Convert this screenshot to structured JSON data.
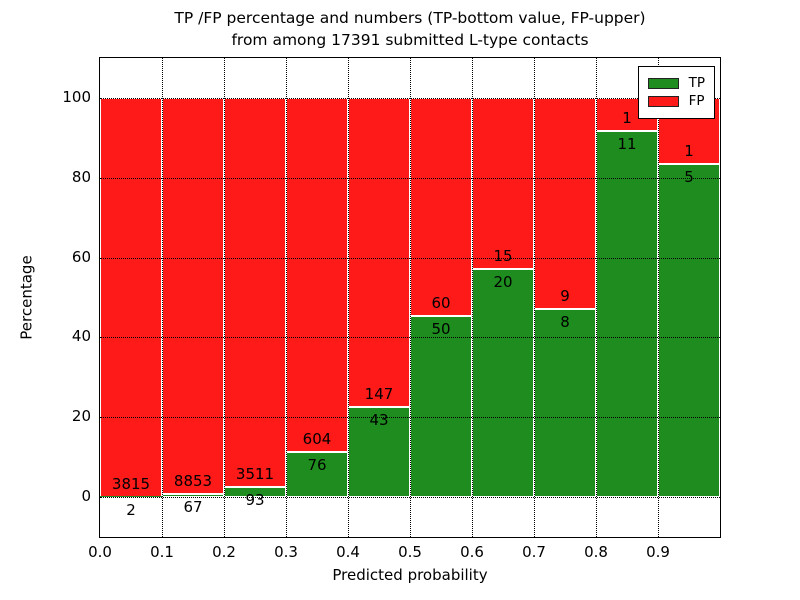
{
  "title": {
    "line1": "TP /FP percentage and numbers (TP-bottom value, FP-upper)",
    "line2": "from among 17391 submitted L-type contacts"
  },
  "axes": {
    "xlabel": "Predicted probability",
    "ylabel": "Percentage",
    "xtick_labels": [
      "0.0",
      "0.1",
      "0.2",
      "0.3",
      "0.4",
      "0.5",
      "0.6",
      "0.7",
      "0.8",
      "0.9"
    ],
    "ytick_values": [
      0,
      20,
      40,
      60,
      80,
      100
    ],
    "xlim": [
      0,
      1
    ],
    "ylim": [
      -10,
      110
    ],
    "grid": "dotted-black"
  },
  "legend": {
    "position": "upper-right",
    "entries": [
      {
        "label": "TP",
        "color": "#1e8c1e"
      },
      {
        "label": "FP",
        "color": "#ff1a1a"
      }
    ]
  },
  "chart_data": {
    "type": "bar",
    "stacked": true,
    "normalized_to_percent": 100,
    "bin_width": 0.1,
    "bin_starts": [
      0.0,
      0.1,
      0.2,
      0.3,
      0.4,
      0.5,
      0.6,
      0.7,
      0.8,
      0.9
    ],
    "series": [
      {
        "name": "TP",
        "color": "#1e8c1e",
        "counts": [
          2,
          67,
          93,
          76,
          43,
          50,
          20,
          8,
          11,
          5
        ]
      },
      {
        "name": "FP",
        "color": "#ff1a1a",
        "counts": [
          3815,
          8853,
          3511,
          604,
          147,
          60,
          15,
          9,
          1,
          1
        ]
      }
    ],
    "tp_percent": [
      0.05,
      0.75,
      2.58,
      11.18,
      22.63,
      45.45,
      57.14,
      47.06,
      91.67,
      83.33
    ],
    "total_contacts": 17391,
    "title": "TP /FP percentage and numbers (TP-bottom value, FP-upper) from among 17391 submitted L-type contacts",
    "xlabel": "Predicted probability",
    "ylabel": "Percentage"
  }
}
